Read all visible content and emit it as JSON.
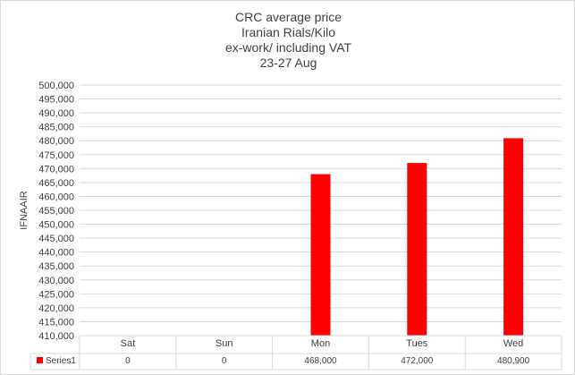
{
  "chart_data": {
    "type": "table",
    "title_lines": [
      "CRC average price",
      "Iranian Rials/Kilo",
      "ex-work/ including VAT",
      "23-27 Aug"
    ],
    "ylabel": "IFNAAIR",
    "ylim": [
      410000,
      500000
    ],
    "ytick_step": 5000,
    "yticks": [
      "410,000",
      "415,000",
      "420,000",
      "425,000",
      "430,000",
      "435,000",
      "440,000",
      "445,000",
      "450,000",
      "455,000",
      "460,000",
      "465,000",
      "470,000",
      "475,000",
      "480,000",
      "485,000",
      "490,000",
      "495,000",
      "500,000"
    ],
    "categories": [
      "Sat",
      "Sun",
      "Mon",
      "Tues",
      "Wed"
    ],
    "series": [
      {
        "name": "Series1",
        "color": "#ff0000",
        "values": [
          0,
          0,
          468000,
          472000,
          480900
        ],
        "table_labels": [
          "0",
          "0",
          "468,000",
          "472,000",
          "480,900"
        ]
      }
    ],
    "grid": true,
    "data_table": true
  }
}
